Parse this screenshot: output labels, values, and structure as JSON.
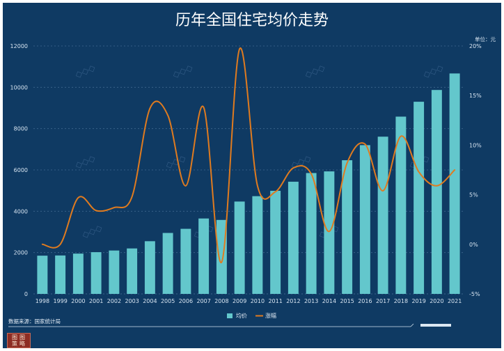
{
  "chart_data": {
    "type": "bar+line",
    "title": "历年全国住宅均价走势",
    "unit": "单位：元",
    "categories": [
      "1998",
      "1999",
      "2000",
      "2001",
      "2002",
      "2003",
      "2004",
      "2005",
      "2006",
      "2007",
      "2008",
      "2009",
      "2010",
      "2011",
      "2012",
      "2013",
      "2014",
      "2015",
      "2016",
      "2017",
      "2018",
      "2019",
      "2020",
      "2021"
    ],
    "series": [
      {
        "name": "均价",
        "type": "bar",
        "axis": "left",
        "color": "#63c7cc",
        "values": [
          1850,
          1860,
          1950,
          2020,
          2100,
          2200,
          2550,
          2950,
          3150,
          3650,
          3580,
          4470,
          4730,
          4990,
          5430,
          5850,
          5930,
          6470,
          7200,
          7610,
          8580,
          9300,
          9870,
          10670
        ]
      },
      {
        "name": "涨幅",
        "type": "line",
        "axis": "right",
        "color": "#e07b1f",
        "values": [
          0.0,
          0.0,
          4.7,
          3.4,
          3.7,
          4.8,
          13.7,
          13.0,
          5.9,
          13.8,
          -1.8,
          19.7,
          5.9,
          5.3,
          7.7,
          7.1,
          1.3,
          8.2,
          10.1,
          5.4,
          10.9,
          7.3,
          5.9,
          7.5
        ]
      }
    ],
    "y_left": {
      "range": [
        0,
        12000
      ],
      "ticks": [
        0,
        2000,
        4000,
        6000,
        8000,
        10000,
        12000
      ],
      "tick_labels": [
        "0",
        "2000",
        "4000",
        "6000",
        "8000",
        "10000",
        "12000"
      ]
    },
    "y_right": {
      "range": [
        -5,
        20
      ],
      "ticks": [
        -5,
        0,
        5,
        10,
        15,
        20
      ],
      "tick_labels": [
        "-5%",
        "0%",
        "5%",
        "10%",
        "15%",
        "20%"
      ]
    },
    "grid": "horizontal dashed",
    "legend": "bottom-center",
    "source": "数据来源：国家统计局",
    "colors": {
      "background": "#0f3a63",
      "bar": "#63c7cc",
      "line": "#e07b1f",
      "grid": "#7a9fc5",
      "text": "#d9e6f2"
    }
  }
}
